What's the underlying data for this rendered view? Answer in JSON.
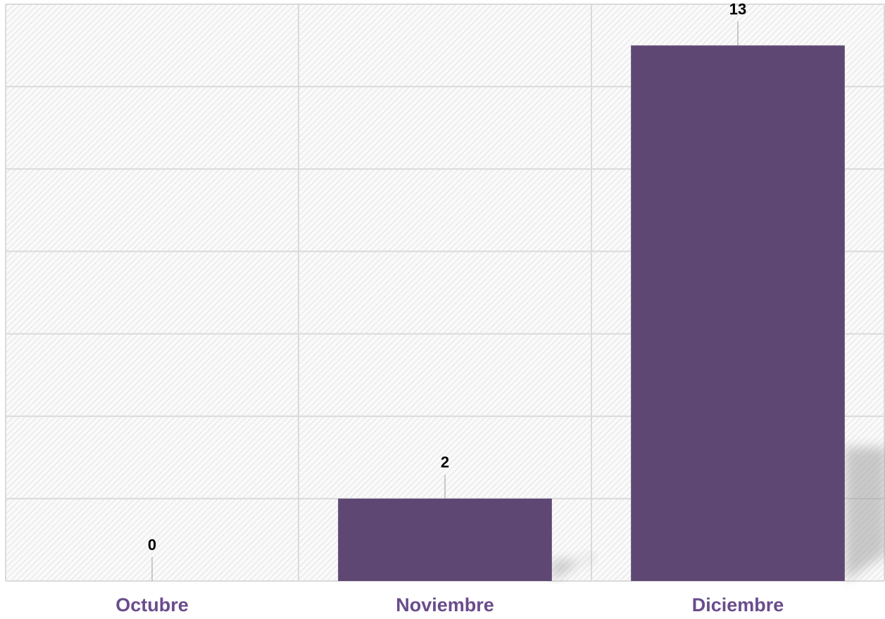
{
  "chart_data": {
    "type": "bar",
    "categories": [
      "Octubre",
      "Noviembre",
      "Diciembre"
    ],
    "values": [
      0,
      2,
      13
    ],
    "color": "#5e4873",
    "ylim": [
      0,
      14
    ],
    "yticks": [
      0,
      2,
      4,
      6,
      8,
      10,
      12,
      14
    ],
    "grid": true
  }
}
